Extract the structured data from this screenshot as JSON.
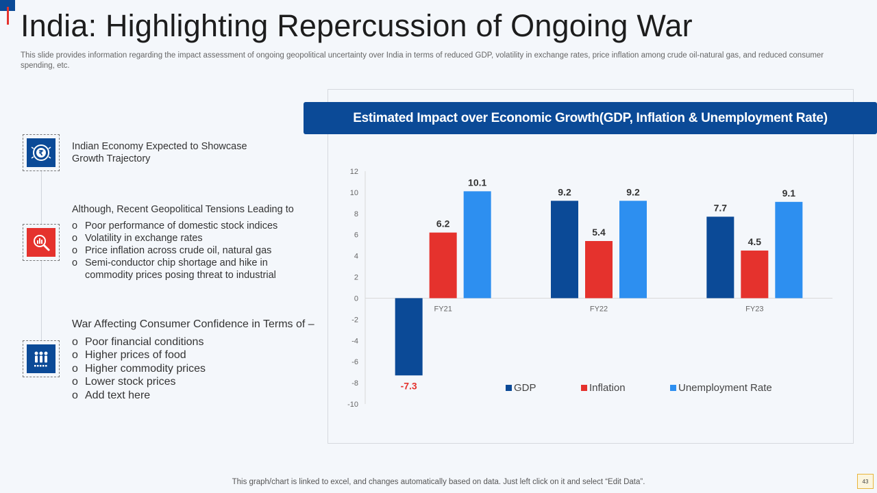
{
  "slide": {
    "title": "India: Highlighting Repercussion of Ongoing War",
    "subtitle": "This slide provides information regarding the impact assessment of ongoing geopolitical uncertainty over India in terms of reduced GDP, volatility in exchange rates, price inflation among crude oil-natural gas, and reduced consumer spending, etc.",
    "footer_note": "This graph/chart is linked to excel, and changes automatically based on data. Just left click on it and select “Edit Data”.",
    "page_number": "43"
  },
  "left_panel": {
    "items": [
      {
        "icon": "rupee-growth-icon",
        "heading": "Indian Economy Expected to Showcase Growth Trajectory",
        "bullets": []
      },
      {
        "icon": "chart-magnifier-icon",
        "heading": "Although, Recent Geopolitical Tensions Leading to",
        "bullets": [
          "Poor performance of domestic stock indices",
          "Volatility in exchange rates",
          "Price inflation across crude oil, natural gas",
          "Semi-conductor chip shortage and hike in commodity prices posing threat to industrial"
        ]
      },
      {
        "icon": "people-icon",
        "heading": "War Affecting Consumer Confidence in Terms of –",
        "bullets": [
          "Poor financial conditions",
          "Higher prices of food",
          "Higher commodity prices",
          "Lower stock prices",
          "Add text here"
        ]
      }
    ]
  },
  "colors": {
    "gdp": "#0b4a97",
    "inflation": "#e5322d",
    "unemployment": "#2d8ff0",
    "header": "#0b4a97"
  },
  "chart_data": {
    "type": "bar",
    "title": "Estimated Impact over Economic Growth(GDP, Inflation & Unemployment Rate)",
    "categories": [
      "FY21",
      "FY22",
      "FY23"
    ],
    "series": [
      {
        "name": "GDP",
        "values": [
          -7.3,
          9.2,
          7.7
        ]
      },
      {
        "name": "Inflation",
        "values": [
          6.2,
          5.4,
          4.5
        ]
      },
      {
        "name": "Unemployment Rate",
        "values": [
          10.1,
          9.2,
          9.1
        ]
      }
    ],
    "ylim": [
      -10,
      12
    ],
    "yticks": [
      12,
      10,
      8,
      6,
      4,
      2,
      0,
      -2,
      -4,
      -6,
      -8,
      -10
    ],
    "xlabel": "",
    "ylabel": "",
    "legend": "bottom-center",
    "grid": false
  }
}
